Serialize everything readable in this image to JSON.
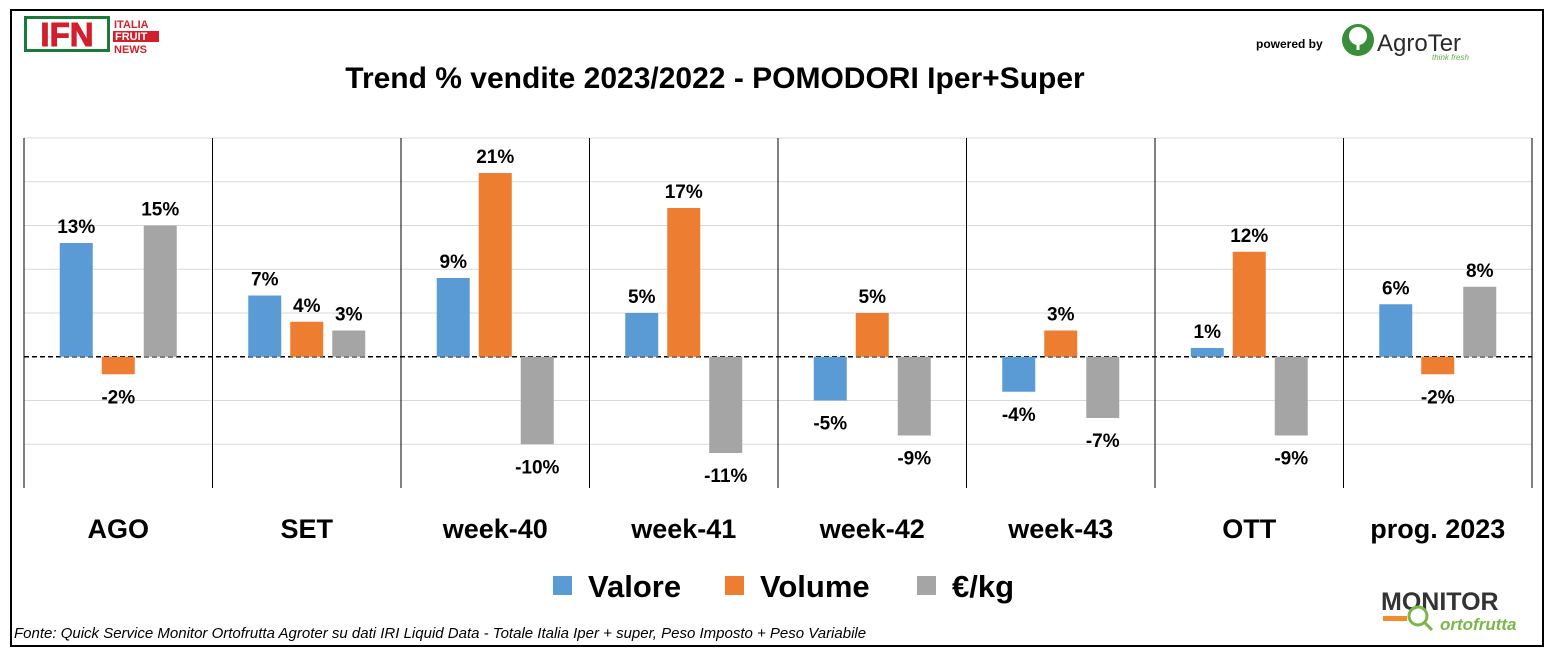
{
  "header": {
    "ifn_logo": {
      "letters": "IFN",
      "line1": "ITALIA",
      "line2": "FRUIT",
      "line3": "NEWS"
    },
    "powered_by": "powered by",
    "agroter_logo": {
      "name": "AgroTer",
      "tagline": "think fresh"
    },
    "title": "Trend % vendite 2023/2022 - POMODORI Iper+Super"
  },
  "footer": {
    "source": "Fonte: Quick Service Monitor Ortofrutta Agroter su dati IRI Liquid Data - Totale Italia Iper + super, Peso Imposto + Peso Variabile",
    "monitor_logo": {
      "line1": "MONITOR",
      "line2": "ortofrutta"
    }
  },
  "colors": {
    "valore": "#5B9BD5",
    "volume": "#ED7D31",
    "eurokg": "#A5A5A5"
  },
  "chart_data": {
    "type": "bar",
    "title": "Trend % vendite 2023/2022 - POMODORI Iper+Super",
    "categories": [
      "AGO",
      "SET",
      "week-40",
      "week-41",
      "week-42",
      "week-43",
      "OTT",
      "prog. 2023"
    ],
    "series": [
      {
        "name": "Valore",
        "values": [
          13,
          7,
          9,
          5,
          -5,
          -4,
          1,
          6
        ],
        "labels": [
          "13%",
          "7%",
          "9%",
          "5%",
          "-5%",
          "-4%",
          "1%",
          "6%"
        ]
      },
      {
        "name": "Volume",
        "values": [
          -2,
          4,
          21,
          17,
          5,
          3,
          12,
          -2
        ],
        "labels": [
          "-2%",
          "4%",
          "21%",
          "17%",
          "5%",
          "3%",
          "12%",
          "-2%"
        ]
      },
      {
        "name": "€/kg",
        "values": [
          15,
          3,
          -10,
          -11,
          -9,
          -7,
          -9,
          8
        ],
        "labels": [
          "15%",
          "3%",
          "-10%",
          "-11%",
          "-9%",
          "-7%",
          "-9%",
          "8%"
        ]
      }
    ],
    "ylim": [
      -15,
      25
    ],
    "grid": true,
    "legend": "bottom-center",
    "zero_line": "dashed"
  }
}
